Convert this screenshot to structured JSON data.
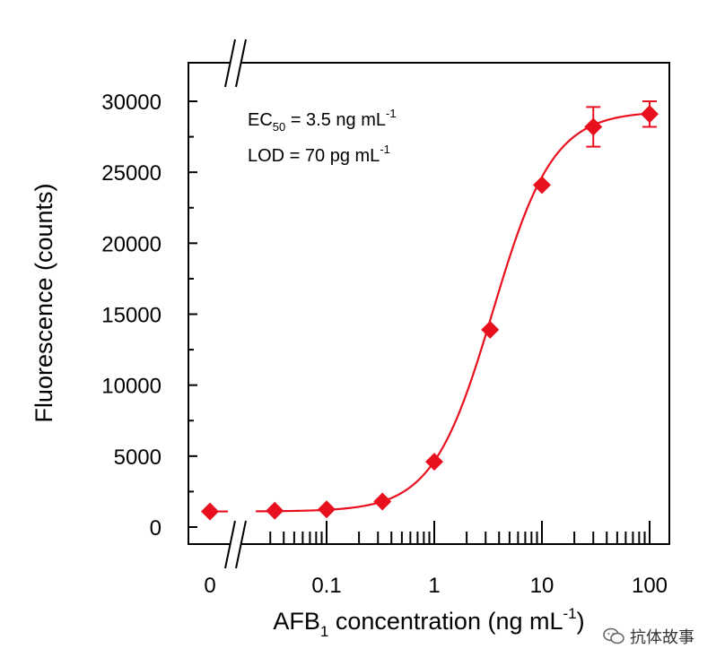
{
  "chart_data": {
    "type": "scatter",
    "title": "",
    "xlabel": {
      "prefix": "AFB",
      "sub": "1",
      "mid": " concentration (ng mL",
      "sup": "-1",
      "suffix": ")"
    },
    "ylabel": "Fluorescence (counts)",
    "x_scale": "log with axis break (zero point shown left of break)",
    "xlim": [
      0.01,
      150
    ],
    "ylim": [
      0,
      32000
    ],
    "x_tick_labels": [
      "0",
      "0.1",
      "1",
      "10",
      "100"
    ],
    "y_tick_labels": [
      "0",
      "5000",
      "10000",
      "15000",
      "20000",
      "25000",
      "30000"
    ],
    "y_ticks": [
      0,
      5000,
      10000,
      15000,
      20000,
      25000,
      30000
    ],
    "series": [
      {
        "name": "AFB1",
        "color": "#e8101e",
        "points": [
          {
            "x": 0,
            "y": 1100,
            "err": 0
          },
          {
            "x": 0.033,
            "y": 1150,
            "err": 0
          },
          {
            "x": 0.1,
            "y": 1250,
            "err": 0
          },
          {
            "x": 0.33,
            "y": 1800,
            "err": 0
          },
          {
            "x": 1,
            "y": 4600,
            "err": 0
          },
          {
            "x": 3.3,
            "y": 13900,
            "err": 0
          },
          {
            "x": 10,
            "y": 24100,
            "err": 0
          },
          {
            "x": 30,
            "y": 28200,
            "err": 1400
          },
          {
            "x": 100,
            "y": 29100,
            "err": 900
          }
        ],
        "fit": {
          "model": "four-parameter logistic",
          "bottom": 1100,
          "top": 29300,
          "ec50": 3.5,
          "hill": 1.55
        }
      }
    ],
    "annotations": {
      "ec50": {
        "prefix": "EC",
        "sub": "50",
        "mid": " = 3.5 ng mL",
        "sup": "-1"
      },
      "lod": {
        "prefix": "LOD = 70 pg mL",
        "sup": "-1"
      }
    }
  },
  "watermark": {
    "text": "抗体故事",
    "icon": "wechat-icon"
  }
}
